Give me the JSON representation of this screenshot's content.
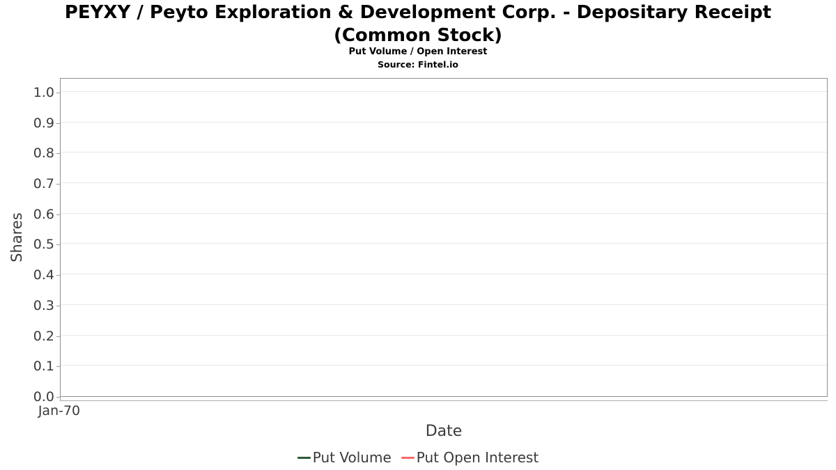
{
  "chart_data": {
    "type": "line",
    "title": "PEYXY / Peyto Exploration & Development Corp. - Depositary Receipt (Common Stock)",
    "subtitle": "Put Volume / Open Interest",
    "source": "Source: Fintel.io",
    "xlabel": "Date",
    "ylabel": "Shares",
    "ylim": [
      0.0,
      1.05
    ],
    "yticks": [
      "0.0",
      "0.1",
      "0.2",
      "0.3",
      "0.4",
      "0.5",
      "0.6",
      "0.7",
      "0.8",
      "0.9",
      "1.0"
    ],
    "xticks": [
      "Jan-70"
    ],
    "grid": true,
    "legend_position": "bottom",
    "series": [
      {
        "name": "Put Volume",
        "color": "#2e5939",
        "x": [],
        "values": []
      },
      {
        "name": "Put Open Interest",
        "color": "#fa6b6b",
        "x": [],
        "values": []
      }
    ]
  },
  "colors": {
    "grid": "#e8e8e8",
    "plot_border": "#8e8e8e",
    "axis_text": "#3a3a3a"
  }
}
